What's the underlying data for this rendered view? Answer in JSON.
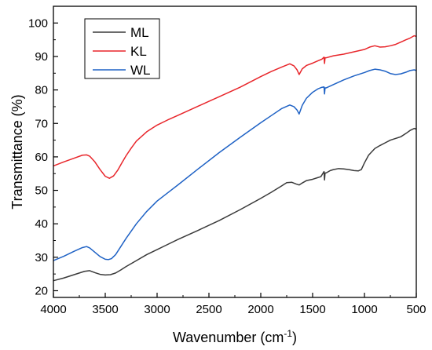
{
  "chart_data": {
    "type": "line",
    "xlabel": "Wavenumber (cm",
    "xlabel_sup": "-1",
    "xlabel_end": ")",
    "ylabel": "Transmittance (%)",
    "xlim": [
      4000,
      500
    ],
    "ylim": [
      18,
      105
    ],
    "x_reversed": true,
    "xticks": [
      4000,
      3500,
      3000,
      2500,
      2000,
      1500,
      1000,
      500
    ],
    "yticks": [
      20,
      30,
      40,
      50,
      60,
      70,
      80,
      90,
      100
    ],
    "grid": false,
    "legend_position": "top-left",
    "series": [
      {
        "name": "ML",
        "color": "#3a3a3a",
        "x": [
          4000,
          3900,
          3800,
          3700,
          3650,
          3600,
          3550,
          3500,
          3450,
          3400,
          3350,
          3300,
          3200,
          3100,
          3000,
          2900,
          2800,
          2600,
          2400,
          2200,
          2000,
          1900,
          1800,
          1750,
          1700,
          1660,
          1630,
          1600,
          1560,
          1500,
          1460,
          1420,
          1390,
          1385,
          1380,
          1370,
          1330,
          1300,
          1250,
          1200,
          1150,
          1100,
          1060,
          1030,
          1000,
          960,
          900,
          850,
          800,
          750,
          700,
          650,
          600,
          560,
          520,
          500
        ],
        "y": [
          23.0,
          23.8,
          24.8,
          25.8,
          26.0,
          25.4,
          24.9,
          24.7,
          24.8,
          25.3,
          26.2,
          27.2,
          29.0,
          30.8,
          32.3,
          33.8,
          35.3,
          38.1,
          41.0,
          44.2,
          47.6,
          49.4,
          51.3,
          52.3,
          52.4,
          51.9,
          51.6,
          52.2,
          52.9,
          53.3,
          53.7,
          54.1,
          55.6,
          53.1,
          55.2,
          55.2,
          55.9,
          56.2,
          56.5,
          56.4,
          56.2,
          55.9,
          55.8,
          56.2,
          58.2,
          60.5,
          62.5,
          63.4,
          64.2,
          65.0,
          65.5,
          66.0,
          67.0,
          67.9,
          68.5,
          68.3
        ]
      },
      {
        "name": "KL",
        "color": "#e8262b",
        "x": [
          4000,
          3900,
          3800,
          3720,
          3680,
          3650,
          3600,
          3550,
          3500,
          3460,
          3420,
          3380,
          3340,
          3300,
          3250,
          3200,
          3100,
          3000,
          2900,
          2800,
          2600,
          2400,
          2200,
          2000,
          1900,
          1800,
          1720,
          1680,
          1650,
          1630,
          1600,
          1560,
          1500,
          1450,
          1410,
          1390,
          1385,
          1380,
          1370,
          1300,
          1200,
          1100,
          1000,
          950,
          900,
          850,
          800,
          750,
          700,
          650,
          600,
          560,
          520,
          500
        ],
        "y": [
          57.3,
          58.5,
          59.6,
          60.5,
          60.6,
          60.2,
          58.5,
          56.2,
          54.2,
          53.6,
          54.3,
          56.0,
          58.2,
          60.3,
          62.6,
          64.7,
          67.5,
          69.5,
          71.0,
          72.4,
          75.2,
          78.0,
          80.8,
          84.0,
          85.5,
          86.8,
          87.8,
          87.2,
          86.0,
          84.6,
          86.3,
          87.3,
          88.0,
          88.7,
          89.2,
          89.8,
          87.9,
          89.6,
          89.6,
          90.2,
          90.7,
          91.4,
          92.1,
          92.8,
          93.2,
          92.8,
          92.9,
          93.2,
          93.6,
          94.3,
          95.0,
          95.5,
          96.2,
          96.0
        ]
      },
      {
        "name": "WL",
        "color": "#1f62c5",
        "x": [
          4000,
          3900,
          3800,
          3720,
          3680,
          3650,
          3600,
          3550,
          3500,
          3470,
          3440,
          3400,
          3350,
          3300,
          3250,
          3200,
          3100,
          3000,
          2900,
          2800,
          2600,
          2400,
          2200,
          2000,
          1900,
          1800,
          1720,
          1680,
          1650,
          1630,
          1600,
          1560,
          1500,
          1450,
          1410,
          1390,
          1385,
          1380,
          1370,
          1300,
          1200,
          1100,
          1000,
          950,
          900,
          850,
          800,
          750,
          700,
          650,
          600,
          560,
          520,
          500
        ],
        "y": [
          29.0,
          30.3,
          31.8,
          32.9,
          33.2,
          32.8,
          31.5,
          30.2,
          29.4,
          29.3,
          29.6,
          30.8,
          33.2,
          35.6,
          37.8,
          40.0,
          43.7,
          46.8,
          49.2,
          51.6,
          56.5,
          61.3,
          65.8,
          70.2,
          72.3,
          74.4,
          75.5,
          75.0,
          74.0,
          72.8,
          75.4,
          77.5,
          79.3,
          80.3,
          80.8,
          80.9,
          78.8,
          80.6,
          80.6,
          81.6,
          83.0,
          84.2,
          85.2,
          85.8,
          86.2,
          86.0,
          85.6,
          84.9,
          84.6,
          84.8,
          85.3,
          85.8,
          86.0,
          85.8
        ]
      }
    ]
  }
}
